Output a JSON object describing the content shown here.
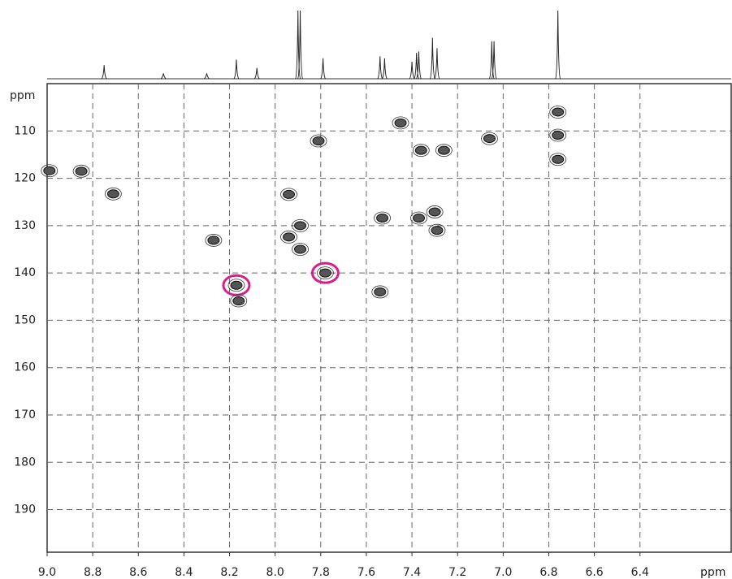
{
  "chart_data": {
    "type": "nmr2d",
    "x_unit": "ppm",
    "y_unit": "ppm",
    "xlim": [
      9.0,
      6.0
    ],
    "ylim": [
      100,
      199
    ],
    "xticks": [
      {
        "value": 9.0,
        "label": "9.0"
      },
      8.8,
      8.6,
      8.4,
      8.2,
      {
        "value": 8.0,
        "label": "8.0"
      },
      7.8,
      7.6,
      7.4,
      7.2,
      {
        "value": 7.0,
        "label": "7.0"
      },
      6.8,
      6.6,
      6.4
    ],
    "yticks": [
      110,
      120,
      130,
      140,
      150,
      160,
      170,
      180,
      190
    ],
    "grid": true,
    "projection": [
      {
        "x": 8.75,
        "height": 20
      },
      {
        "x": 8.49,
        "height": 8
      },
      {
        "x": 8.3,
        "height": 8
      },
      {
        "x": 8.17,
        "height": 28
      },
      {
        "x": 8.08,
        "height": 16
      },
      {
        "x": 7.9,
        "height": 100
      },
      {
        "x": 7.89,
        "height": 100
      },
      {
        "x": 7.79,
        "height": 30
      },
      {
        "x": 7.54,
        "height": 33
      },
      {
        "x": 7.52,
        "height": 30
      },
      {
        "x": 7.4,
        "height": 25
      },
      {
        "x": 7.38,
        "height": 38
      },
      {
        "x": 7.37,
        "height": 40
      },
      {
        "x": 7.31,
        "height": 60
      },
      {
        "x": 7.29,
        "height": 45
      },
      {
        "x": 7.05,
        "height": 55
      },
      {
        "x": 7.04,
        "height": 55
      },
      {
        "x": 6.76,
        "height": 100
      }
    ],
    "peaks": [
      {
        "x": 8.71,
        "y": 123.3
      },
      {
        "x": 8.27,
        "y": 133.1
      },
      {
        "x": 8.17,
        "y": 142.6,
        "circled": true
      },
      {
        "x": 8.16,
        "y": 145.9
      },
      {
        "x": 7.94,
        "y": 123.4
      },
      {
        "x": 7.94,
        "y": 132.4
      },
      {
        "x": 7.89,
        "y": 130.0
      },
      {
        "x": 7.89,
        "y": 135.0
      },
      {
        "x": 7.81,
        "y": 112.1
      },
      {
        "x": 7.78,
        "y": 140.0,
        "circled": true
      },
      {
        "x": 7.53,
        "y": 128.4
      },
      {
        "x": 7.54,
        "y": 144.0
      },
      {
        "x": 7.36,
        "y": 114.1
      },
      {
        "x": 7.26,
        "y": 114.1
      },
      {
        "x": 7.37,
        "y": 128.4
      },
      {
        "x": 7.3,
        "y": 127.1
      },
      {
        "x": 7.29,
        "y": 131.0
      },
      {
        "x": 7.06,
        "y": 111.6
      },
      {
        "x": 6.76,
        "y": 110.9
      },
      {
        "x": 6.76,
        "y": 106.0
      },
      {
        "x": 6.76,
        "y": 116.0
      },
      {
        "x": 7.45,
        "y": 108.3
      },
      {
        "x": 8.99,
        "y": 118.4
      },
      {
        "x": 8.85,
        "y": 118.5
      }
    ]
  }
}
